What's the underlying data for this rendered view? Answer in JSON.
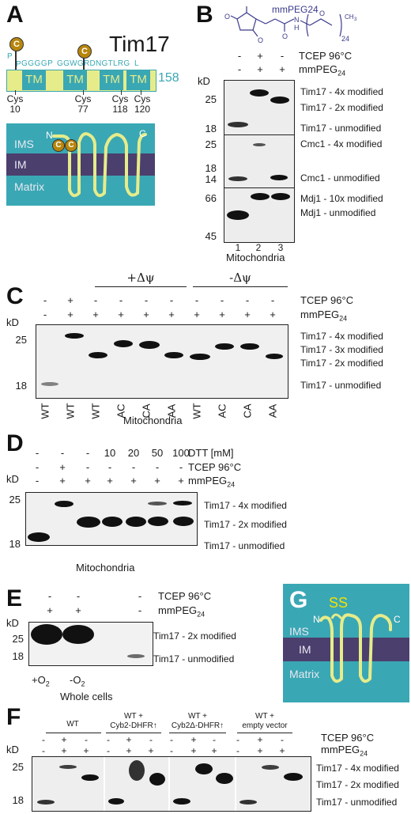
{
  "panels": {
    "A": {
      "letter": "A",
      "protein": "Tim17",
      "length": "158",
      "seq_left": "GGGGP",
      "seq_mid": "GGWGRDNGTLRG",
      "seq_l": "L",
      "seq_pp": "P",
      "seq_p2": "P",
      "tm": "TM",
      "cys_marker": "C",
      "cys": [
        {
          "name": "Cys",
          "pos": "10"
        },
        {
          "name": "Cys",
          "pos": "77"
        },
        {
          "name": "Cys",
          "pos": "118"
        },
        {
          "name": "Cys",
          "pos": "120"
        }
      ],
      "ims": "IMS",
      "im": "IM",
      "matrix": "Matrix",
      "n_term": "N",
      "c_term": "C",
      "colors": {
        "membrane_box": "#3aa7b4",
        "im": "#4b3f6e",
        "helix": "#e6ec8a",
        "marker": "#b8860b"
      }
    },
    "B": {
      "letter": "B",
      "reagent": "mmPEG24",
      "struct_sub1": "24",
      "struct_o": "O",
      "struct_nh": "N",
      "struct_h": "H",
      "struct_ch3": "CH",
      "struct_3": "3",
      "row1_label": "TCEP 96°C",
      "row1_signs": [
        "-",
        "+",
        "-"
      ],
      "row2_label": "mmPEG",
      "row2_sub": "24",
      "row2_signs": [
        "-",
        "+",
        "+"
      ],
      "kd": "kD",
      "blot1_markers": [
        "25",
        "18"
      ],
      "blot1_bands": [
        "Tim17 - 4x modified",
        "Tim17 - 2x modified",
        "Tim17 - unmodified"
      ],
      "blot2_markers": [
        "25",
        "18",
        "14"
      ],
      "blot2_bands": [
        "Cmc1 - 4x modified",
        "Cmc1 - unmodified"
      ],
      "blot3_markers": [
        "66",
        "45"
      ],
      "blot3_bands": [
        "Mdj1 - 10x modified",
        "Mdj1 - unmodified"
      ],
      "lanes": [
        "1",
        "2",
        "3"
      ],
      "caption": "Mitochondria"
    },
    "C": {
      "letter": "C",
      "plus_dpsi": "+Δψ",
      "minus_dpsi": "-Δψ",
      "row1_label": "TCEP 96°C",
      "row1_signs": [
        "-",
        "+",
        "-",
        "-",
        "-",
        "-",
        "-",
        "-",
        "-",
        "-"
      ],
      "row2_label": "mmPEG",
      "row2_sub": "24",
      "row2_signs": [
        "-",
        "+",
        "+",
        "+",
        "+",
        "+",
        "+",
        "+",
        "+",
        "+"
      ],
      "kd": "kD",
      "markers": [
        "25",
        "18"
      ],
      "bands": [
        "Tim17 - 4x modified",
        "Tim17 - 3x modified",
        "Tim17 - 2x modified",
        "Tim17 - unmodified"
      ],
      "lanes": [
        "WT",
        "WT",
        "WT",
        "AC",
        "CA",
        "AA",
        "WT",
        "AC",
        "CA",
        "AA"
      ],
      "caption": "Mitochondria"
    },
    "D": {
      "letter": "D",
      "dtt_label": "DTT [mM]",
      "dtt_values": [
        "-",
        "-",
        "-",
        "10",
        "20",
        "50",
        "100"
      ],
      "row1_label": "TCEP 96°C",
      "row1_signs": [
        "-",
        "+",
        "-",
        "-",
        "-",
        "-",
        "-"
      ],
      "row2_label": "mmPEG",
      "row2_sub": "24",
      "row2_signs": [
        "-",
        "+",
        "+",
        "+",
        "+",
        "+",
        "+"
      ],
      "kd": "kD",
      "markers": [
        "25",
        "18"
      ],
      "bands": [
        "Tim17 - 4x modified",
        "Tim17 - 2x modified",
        "Tim17 - unmodified"
      ],
      "caption": "Mitochondria"
    },
    "E": {
      "letter": "E",
      "row1_label": "TCEP 96°C",
      "row1_signs": [
        "-",
        "-",
        "-"
      ],
      "row2_label": "mmPEG",
      "row2_sub": "24",
      "row2_signs": [
        "+",
        "+",
        "-"
      ],
      "kd": "kD",
      "markers": [
        "25",
        "18"
      ],
      "bands": [
        "Tim17 - 2x modified",
        "Tim17 - unmodified"
      ],
      "conditions": [
        "+O",
        "-O"
      ],
      "cond_sub": "2",
      "caption": "Whole cells"
    },
    "F": {
      "letter": "F",
      "groups": [
        {
          "line1": "WT",
          "line2": ""
        },
        {
          "line1": "WT +",
          "line2": "Cyb2-DHFR↑"
        },
        {
          "line1": "WT +",
          "line2": "Cyb2Δ-DHFR↑"
        },
        {
          "line1": "WT +",
          "line2": "empty vector"
        }
      ],
      "row1_label": "TCEP 96°C",
      "row1_signs": [
        "-",
        "+",
        "-",
        "-",
        "+",
        "-",
        "-",
        "+",
        "-",
        "-",
        "+",
        "-"
      ],
      "row2_label": "mmPEG",
      "row2_sub": "24",
      "row2_signs": [
        "-",
        "+",
        "+",
        "-",
        "+",
        "+",
        "-",
        "+",
        "+",
        "-",
        "+",
        "+"
      ],
      "kd": "kD",
      "markers": [
        "25",
        "18"
      ],
      "bands": [
        "Tim17 - 4x modified",
        "Tim17 - 2x modified",
        "Tim17 - unmodified"
      ]
    },
    "G": {
      "letter": "G",
      "ss": "SS",
      "ims": "IMS",
      "im": "IM",
      "matrix": "Matrix",
      "n_term": "N",
      "c_term": "C"
    }
  }
}
